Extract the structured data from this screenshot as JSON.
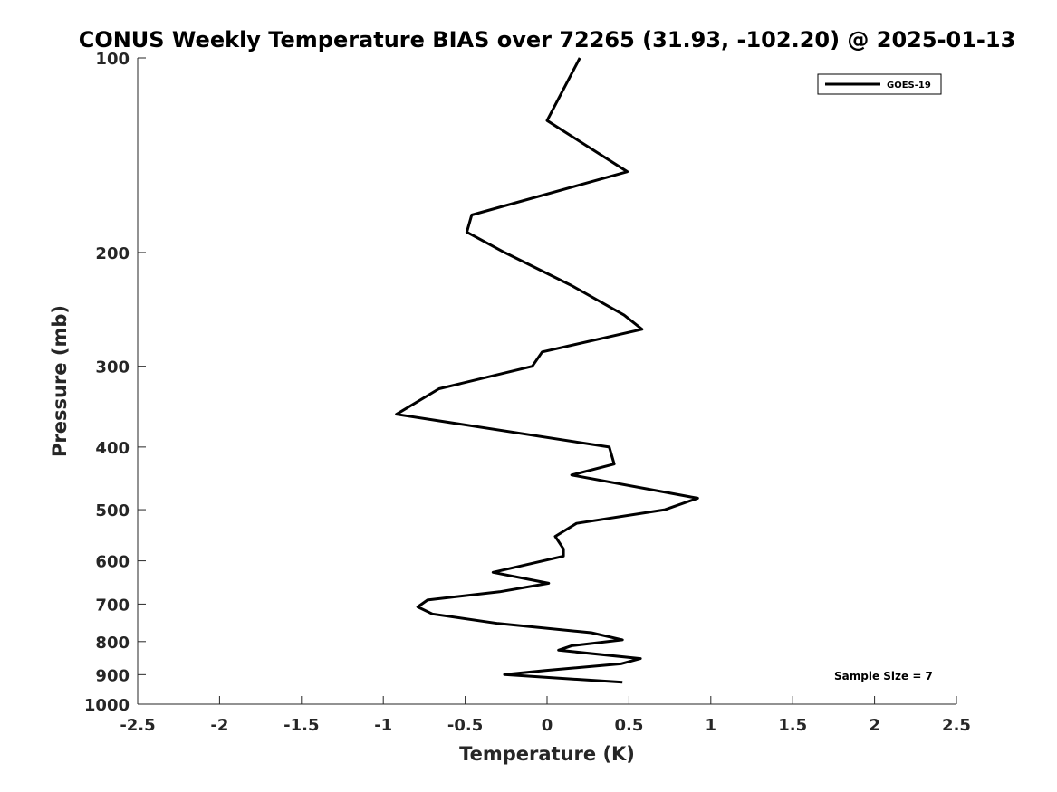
{
  "chart_data": {
    "type": "line",
    "title": "CONUS Weekly Temperature BIAS over 72265 (31.93, -102.20) @ 2025-01-13",
    "xlabel": "Temperature (K)",
    "ylabel": "Pressure (mb)",
    "xlim": [
      -2.5,
      2.5
    ],
    "ylim": [
      1000,
      100
    ],
    "y_scale": "log",
    "y_reversed": true,
    "x_ticks": [
      "-2.5",
      "-2",
      "-1.5",
      "-1",
      "-0.5",
      "0",
      "0.5",
      "1",
      "1.5",
      "2",
      "2.5"
    ],
    "x_tick_values": [
      -2.5,
      -2,
      -1.5,
      -1,
      -0.5,
      0,
      0.5,
      1,
      1.5,
      2,
      2.5
    ],
    "y_ticks": [
      "100",
      "200",
      "300",
      "400",
      "500",
      "600",
      "700",
      "800",
      "900",
      "1000"
    ],
    "y_tick_values": [
      100,
      200,
      300,
      400,
      500,
      600,
      700,
      800,
      900,
      1000
    ],
    "grid": false,
    "legend_position": "top-right",
    "line_color": "#000000",
    "series": [
      {
        "name": "GOES-19",
        "points": [
          {
            "x": 0.2,
            "p": 100
          },
          {
            "x": 0.0,
            "p": 125
          },
          {
            "x": 0.49,
            "p": 150
          },
          {
            "x": -0.46,
            "p": 175
          },
          {
            "x": -0.49,
            "p": 186
          },
          {
            "x": -0.26,
            "p": 200
          },
          {
            "x": 0.15,
            "p": 225
          },
          {
            "x": 0.47,
            "p": 250
          },
          {
            "x": 0.58,
            "p": 263
          },
          {
            "x": -0.03,
            "p": 285
          },
          {
            "x": -0.09,
            "p": 300
          },
          {
            "x": -0.66,
            "p": 325
          },
          {
            "x": -0.92,
            "p": 356
          },
          {
            "x": 0.38,
            "p": 400
          },
          {
            "x": 0.41,
            "p": 425
          },
          {
            "x": 0.15,
            "p": 442
          },
          {
            "x": 0.92,
            "p": 480
          },
          {
            "x": 0.72,
            "p": 500
          },
          {
            "x": 0.18,
            "p": 525
          },
          {
            "x": 0.05,
            "p": 550
          },
          {
            "x": 0.1,
            "p": 575
          },
          {
            "x": 0.1,
            "p": 590
          },
          {
            "x": -0.33,
            "p": 625
          },
          {
            "x": 0.01,
            "p": 650
          },
          {
            "x": -0.29,
            "p": 670
          },
          {
            "x": -0.73,
            "p": 690
          },
          {
            "x": -0.79,
            "p": 707
          },
          {
            "x": -0.7,
            "p": 725
          },
          {
            "x": -0.3,
            "p": 750
          },
          {
            "x": 0.27,
            "p": 775
          },
          {
            "x": 0.46,
            "p": 795
          },
          {
            "x": 0.15,
            "p": 812
          },
          {
            "x": 0.07,
            "p": 825
          },
          {
            "x": 0.57,
            "p": 850
          },
          {
            "x": 0.45,
            "p": 866
          },
          {
            "x": -0.01,
            "p": 887
          },
          {
            "x": -0.26,
            "p": 900
          },
          {
            "x": 0.46,
            "p": 925
          }
        ]
      }
    ],
    "legend": [
      {
        "label": "GOES-19"
      }
    ],
    "annotations": [
      {
        "text": "Sample Size = 7"
      }
    ]
  }
}
